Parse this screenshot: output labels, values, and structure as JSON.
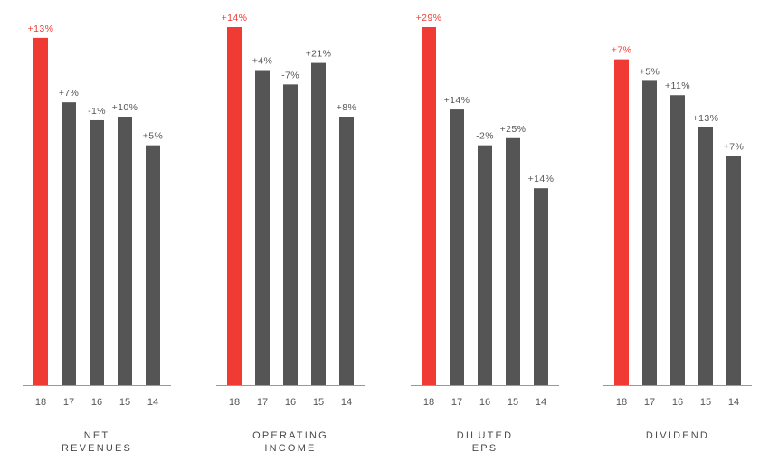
{
  "colors": {
    "highlight": "#ef3b33",
    "bar": "#555555",
    "axis": "#999999",
    "label": "#555555"
  },
  "chart_data": [
    {
      "type": "bar",
      "title_lines": [
        "NET",
        "REVENUES"
      ],
      "categories": [
        "18",
        "17",
        "16",
        "15",
        "14"
      ],
      "values": [
        0.97,
        0.79,
        0.74,
        0.75,
        0.67
      ],
      "labels": [
        "+13%",
        "+7%",
        "-1%",
        "+10%",
        "+5%"
      ],
      "highlight": [
        true,
        false,
        false,
        false,
        false
      ],
      "ylim": [
        0,
        1
      ]
    },
    {
      "type": "bar",
      "title_lines": [
        "OPERATING",
        "INCOME"
      ],
      "categories": [
        "18",
        "17",
        "16",
        "15",
        "14"
      ],
      "values": [
        1.0,
        0.88,
        0.84,
        0.9,
        0.75
      ],
      "labels": [
        "+14%",
        "+4%",
        "-7%",
        "+21%",
        "+8%"
      ],
      "highlight": [
        true,
        false,
        false,
        false,
        false
      ],
      "ylim": [
        0,
        1
      ]
    },
    {
      "type": "bar",
      "title_lines": [
        "DILUTED",
        "EPS"
      ],
      "categories": [
        "18",
        "17",
        "16",
        "15",
        "14"
      ],
      "values": [
        1.0,
        0.77,
        0.67,
        0.69,
        0.55
      ],
      "labels": [
        "+29%",
        "+14%",
        "-2%",
        "+25%",
        "+14%"
      ],
      "highlight": [
        true,
        false,
        false,
        false,
        false
      ],
      "ylim": [
        0,
        1
      ]
    },
    {
      "type": "bar",
      "title_lines": [
        "DIVIDEND"
      ],
      "categories": [
        "18",
        "17",
        "16",
        "15",
        "14"
      ],
      "values": [
        0.91,
        0.85,
        0.81,
        0.72,
        0.64
      ],
      "labels": [
        "+7%",
        "+5%",
        "+11%",
        "+13%",
        "+7%"
      ],
      "highlight": [
        true,
        false,
        false,
        false,
        false
      ],
      "ylim": [
        0,
        1
      ]
    }
  ]
}
